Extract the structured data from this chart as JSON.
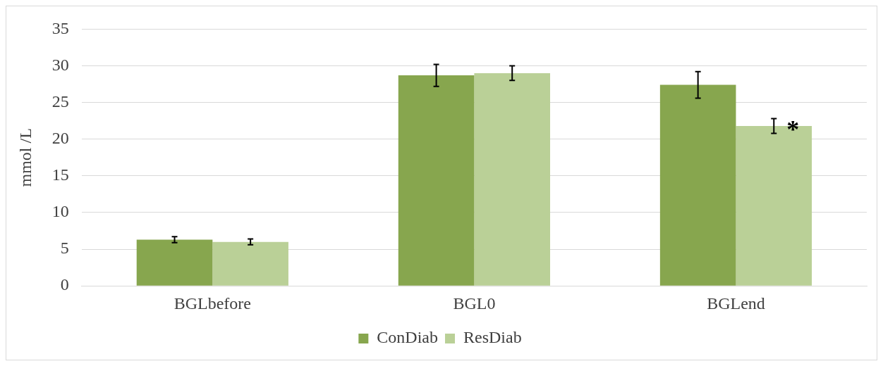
{
  "chart_data": {
    "type": "bar",
    "ylabel": "mmol /L",
    "categories": [
      "BGLbefore",
      "BGL0",
      "BGLend"
    ],
    "series": [
      {
        "name": "ConDiab",
        "color": "#87a64e",
        "values": [
          6.3,
          28.7,
          27.4
        ],
        "errors": [
          0.4,
          1.5,
          1.8
        ]
      },
      {
        "name": "ResDiab",
        "color": "#bad097",
        "values": [
          6.0,
          29.0,
          21.8
        ],
        "errors": [
          0.4,
          1.0,
          1.0
        ]
      }
    ],
    "ylim": [
      0,
      35
    ],
    "yticks": [
      0,
      5,
      10,
      15,
      20,
      25,
      30,
      35
    ],
    "grid": "y",
    "legend": "bottom",
    "annotations": [
      {
        "text": "*",
        "x": "BGLend",
        "y": 21.8
      }
    ]
  }
}
